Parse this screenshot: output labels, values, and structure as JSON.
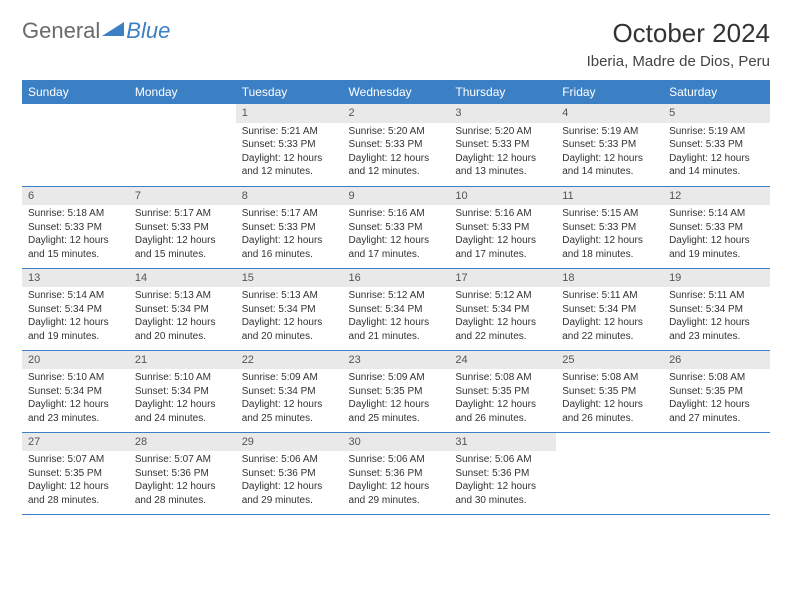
{
  "brand": {
    "part1": "General",
    "part2": "Blue"
  },
  "title": "October 2024",
  "location": "Iberia, Madre de Dios, Peru",
  "colors": {
    "header_bg": "#3b7fc4",
    "daynum_bg": "#e9e9e9",
    "border": "#3b7fc4"
  },
  "weekdays": [
    "Sunday",
    "Monday",
    "Tuesday",
    "Wednesday",
    "Thursday",
    "Friday",
    "Saturday"
  ],
  "weeks": [
    [
      {
        "n": "",
        "sr": "",
        "ss": "",
        "dl": ""
      },
      {
        "n": "",
        "sr": "",
        "ss": "",
        "dl": ""
      },
      {
        "n": "1",
        "sr": "Sunrise: 5:21 AM",
        "ss": "Sunset: 5:33 PM",
        "dl": "Daylight: 12 hours and 12 minutes."
      },
      {
        "n": "2",
        "sr": "Sunrise: 5:20 AM",
        "ss": "Sunset: 5:33 PM",
        "dl": "Daylight: 12 hours and 12 minutes."
      },
      {
        "n": "3",
        "sr": "Sunrise: 5:20 AM",
        "ss": "Sunset: 5:33 PM",
        "dl": "Daylight: 12 hours and 13 minutes."
      },
      {
        "n": "4",
        "sr": "Sunrise: 5:19 AM",
        "ss": "Sunset: 5:33 PM",
        "dl": "Daylight: 12 hours and 14 minutes."
      },
      {
        "n": "5",
        "sr": "Sunrise: 5:19 AM",
        "ss": "Sunset: 5:33 PM",
        "dl": "Daylight: 12 hours and 14 minutes."
      }
    ],
    [
      {
        "n": "6",
        "sr": "Sunrise: 5:18 AM",
        "ss": "Sunset: 5:33 PM",
        "dl": "Daylight: 12 hours and 15 minutes."
      },
      {
        "n": "7",
        "sr": "Sunrise: 5:17 AM",
        "ss": "Sunset: 5:33 PM",
        "dl": "Daylight: 12 hours and 15 minutes."
      },
      {
        "n": "8",
        "sr": "Sunrise: 5:17 AM",
        "ss": "Sunset: 5:33 PM",
        "dl": "Daylight: 12 hours and 16 minutes."
      },
      {
        "n": "9",
        "sr": "Sunrise: 5:16 AM",
        "ss": "Sunset: 5:33 PM",
        "dl": "Daylight: 12 hours and 17 minutes."
      },
      {
        "n": "10",
        "sr": "Sunrise: 5:16 AM",
        "ss": "Sunset: 5:33 PM",
        "dl": "Daylight: 12 hours and 17 minutes."
      },
      {
        "n": "11",
        "sr": "Sunrise: 5:15 AM",
        "ss": "Sunset: 5:33 PM",
        "dl": "Daylight: 12 hours and 18 minutes."
      },
      {
        "n": "12",
        "sr": "Sunrise: 5:14 AM",
        "ss": "Sunset: 5:33 PM",
        "dl": "Daylight: 12 hours and 19 minutes."
      }
    ],
    [
      {
        "n": "13",
        "sr": "Sunrise: 5:14 AM",
        "ss": "Sunset: 5:34 PM",
        "dl": "Daylight: 12 hours and 19 minutes."
      },
      {
        "n": "14",
        "sr": "Sunrise: 5:13 AM",
        "ss": "Sunset: 5:34 PM",
        "dl": "Daylight: 12 hours and 20 minutes."
      },
      {
        "n": "15",
        "sr": "Sunrise: 5:13 AM",
        "ss": "Sunset: 5:34 PM",
        "dl": "Daylight: 12 hours and 20 minutes."
      },
      {
        "n": "16",
        "sr": "Sunrise: 5:12 AM",
        "ss": "Sunset: 5:34 PM",
        "dl": "Daylight: 12 hours and 21 minutes."
      },
      {
        "n": "17",
        "sr": "Sunrise: 5:12 AM",
        "ss": "Sunset: 5:34 PM",
        "dl": "Daylight: 12 hours and 22 minutes."
      },
      {
        "n": "18",
        "sr": "Sunrise: 5:11 AM",
        "ss": "Sunset: 5:34 PM",
        "dl": "Daylight: 12 hours and 22 minutes."
      },
      {
        "n": "19",
        "sr": "Sunrise: 5:11 AM",
        "ss": "Sunset: 5:34 PM",
        "dl": "Daylight: 12 hours and 23 minutes."
      }
    ],
    [
      {
        "n": "20",
        "sr": "Sunrise: 5:10 AM",
        "ss": "Sunset: 5:34 PM",
        "dl": "Daylight: 12 hours and 23 minutes."
      },
      {
        "n": "21",
        "sr": "Sunrise: 5:10 AM",
        "ss": "Sunset: 5:34 PM",
        "dl": "Daylight: 12 hours and 24 minutes."
      },
      {
        "n": "22",
        "sr": "Sunrise: 5:09 AM",
        "ss": "Sunset: 5:34 PM",
        "dl": "Daylight: 12 hours and 25 minutes."
      },
      {
        "n": "23",
        "sr": "Sunrise: 5:09 AM",
        "ss": "Sunset: 5:35 PM",
        "dl": "Daylight: 12 hours and 25 minutes."
      },
      {
        "n": "24",
        "sr": "Sunrise: 5:08 AM",
        "ss": "Sunset: 5:35 PM",
        "dl": "Daylight: 12 hours and 26 minutes."
      },
      {
        "n": "25",
        "sr": "Sunrise: 5:08 AM",
        "ss": "Sunset: 5:35 PM",
        "dl": "Daylight: 12 hours and 26 minutes."
      },
      {
        "n": "26",
        "sr": "Sunrise: 5:08 AM",
        "ss": "Sunset: 5:35 PM",
        "dl": "Daylight: 12 hours and 27 minutes."
      }
    ],
    [
      {
        "n": "27",
        "sr": "Sunrise: 5:07 AM",
        "ss": "Sunset: 5:35 PM",
        "dl": "Daylight: 12 hours and 28 minutes."
      },
      {
        "n": "28",
        "sr": "Sunrise: 5:07 AM",
        "ss": "Sunset: 5:36 PM",
        "dl": "Daylight: 12 hours and 28 minutes."
      },
      {
        "n": "29",
        "sr": "Sunrise: 5:06 AM",
        "ss": "Sunset: 5:36 PM",
        "dl": "Daylight: 12 hours and 29 minutes."
      },
      {
        "n": "30",
        "sr": "Sunrise: 5:06 AM",
        "ss": "Sunset: 5:36 PM",
        "dl": "Daylight: 12 hours and 29 minutes."
      },
      {
        "n": "31",
        "sr": "Sunrise: 5:06 AM",
        "ss": "Sunset: 5:36 PM",
        "dl": "Daylight: 12 hours and 30 minutes."
      },
      {
        "n": "",
        "sr": "",
        "ss": "",
        "dl": ""
      },
      {
        "n": "",
        "sr": "",
        "ss": "",
        "dl": ""
      }
    ]
  ]
}
